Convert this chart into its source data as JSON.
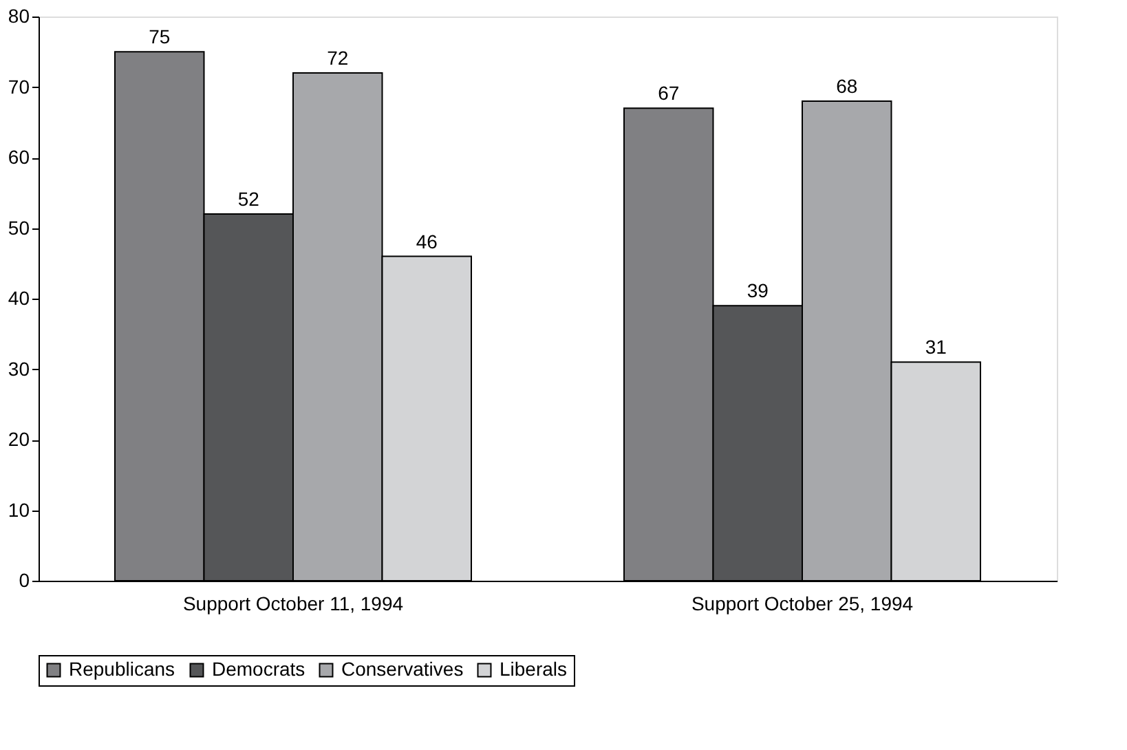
{
  "chart_data": {
    "type": "bar",
    "categories": [
      "Support October 11, 1994",
      "Support October 25, 1994"
    ],
    "series": [
      {
        "name": "Republicans",
        "color": "#808083",
        "values": [
          75,
          67
        ]
      },
      {
        "name": "Democrats",
        "color": "#555658",
        "values": [
          52,
          39
        ]
      },
      {
        "name": "Conservatives",
        "color": "#a7a8ab",
        "values": [
          72,
          68
        ]
      },
      {
        "name": "Liberals",
        "color": "#d3d4d6",
        "values": [
          46,
          31
        ]
      }
    ],
    "ylim": [
      0,
      80
    ],
    "yticks": [
      0,
      10,
      20,
      30,
      40,
      50,
      60,
      70,
      80
    ],
    "grid": false,
    "legend": "bottom",
    "data_labels": true
  }
}
